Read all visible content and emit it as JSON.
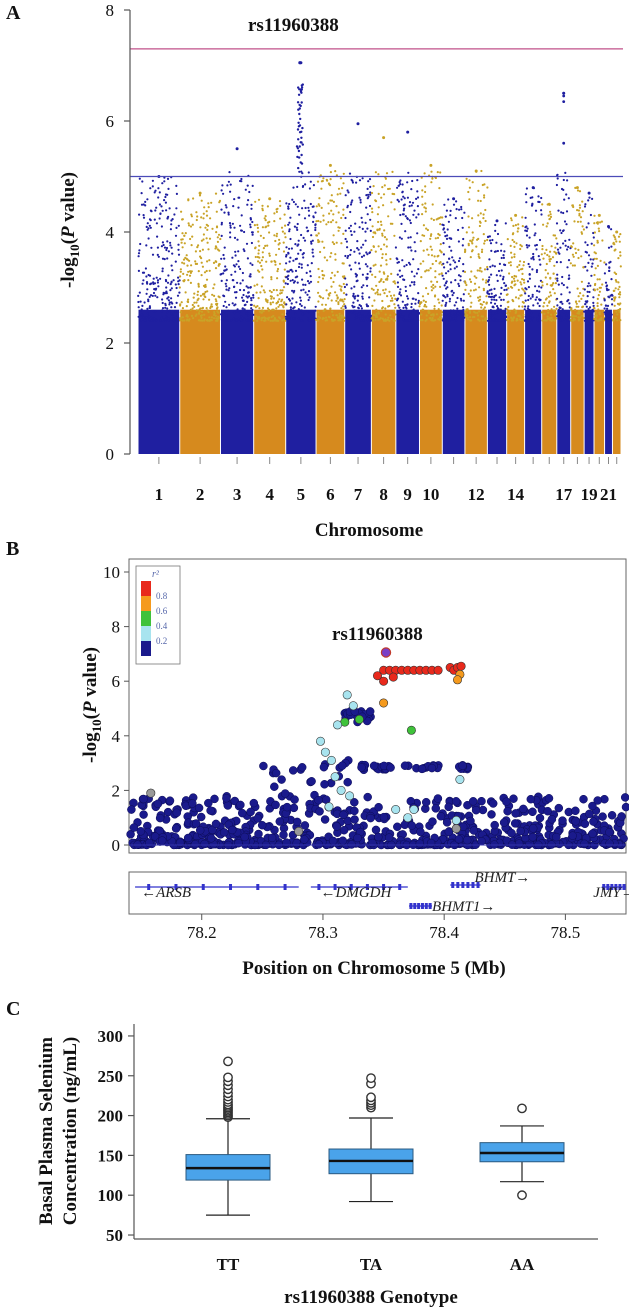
{
  "panels": {
    "a": "A",
    "b": "B",
    "c": "C"
  },
  "colors": {
    "blue": "#1f1fa0",
    "orange": "#d68a1e",
    "gold": "#c9a327",
    "magenta_line": "#c0508a",
    "blue_line": "#4b4bb8",
    "box_fill": "#4aa3ea"
  },
  "chart_data": [
    {
      "type": "scatter",
      "subtype": "manhattan",
      "annotation": "rs11960388",
      "xlabel": "Chromosome",
      "ylabel": "-log10(P value)",
      "ylim": [
        0,
        8
      ],
      "yticks": [
        "0",
        "2",
        "4",
        "6",
        "8"
      ],
      "xticks": [
        "1",
        "2",
        "3",
        "4",
        "5",
        "6",
        "7",
        "8",
        "9",
        "10",
        "12",
        "14",
        "17",
        "19",
        "21"
      ],
      "genome_wide_line": 7.3,
      "suggestive_line": 5.0,
      "chromosomes": [
        {
          "chr": 1,
          "color": "blue",
          "max": 5.0
        },
        {
          "chr": 2,
          "color": "orange",
          "max": 4.7
        },
        {
          "chr": 3,
          "color": "blue",
          "max": 5.5
        },
        {
          "chr": 4,
          "color": "orange",
          "max": 4.6
        },
        {
          "chr": 5,
          "color": "blue",
          "max": 7.05
        },
        {
          "chr": 6,
          "color": "orange",
          "max": 5.2
        },
        {
          "chr": 7,
          "color": "blue",
          "max": 5.95
        },
        {
          "chr": 8,
          "color": "orange",
          "max": 5.7
        },
        {
          "chr": 9,
          "color": "blue",
          "max": 5.8
        },
        {
          "chr": 10,
          "color": "orange",
          "max": 5.2
        },
        {
          "chr": 11,
          "color": "blue",
          "max": 4.6
        },
        {
          "chr": 12,
          "color": "orange",
          "max": 5.1
        },
        {
          "chr": 13,
          "color": "blue",
          "max": 4.2
        },
        {
          "chr": 14,
          "color": "orange",
          "max": 4.3
        },
        {
          "chr": 15,
          "color": "blue",
          "max": 4.8
        },
        {
          "chr": 16,
          "color": "orange",
          "max": 4.5
        },
        {
          "chr": 17,
          "color": "blue",
          "max": 6.5
        },
        {
          "chr": 18,
          "color": "orange",
          "max": 4.8
        },
        {
          "chr": 19,
          "color": "blue",
          "max": 4.7
        },
        {
          "chr": 20,
          "color": "orange",
          "max": 4.3
        },
        {
          "chr": 21,
          "color": "blue",
          "max": 4.1
        },
        {
          "chr": 22,
          "color": "orange",
          "max": 4.0
        }
      ]
    },
    {
      "type": "scatter",
      "subtype": "regional_association",
      "annotation": "rs11960388",
      "xlabel": "Position on Chromosome 5 (Mb)",
      "ylabel": "-log10(P value)",
      "xlim": [
        78.14,
        78.55
      ],
      "ylim": [
        0,
        10
      ],
      "xticks": [
        "78.2",
        "78.3",
        "78.4",
        "78.5"
      ],
      "yticks": [
        "0",
        "2",
        "4",
        "6",
        "8",
        "10"
      ],
      "legend": {
        "title": "r²",
        "entries": [
          "0.8",
          "0.6",
          "0.4",
          "0.2"
        ],
        "colors": [
          "#e8291c",
          "#f59a1d",
          "#3fc23a",
          "#a8e4ef",
          "#1a1a8c"
        ],
        "placement": "top-left"
      },
      "top_snp": {
        "x": 78.352,
        "y": 7.05
      },
      "highlight_points": [
        {
          "x": 78.345,
          "y": 6.2,
          "r2": "red"
        },
        {
          "x": 78.35,
          "y": 6.4,
          "r2": "red"
        },
        {
          "x": 78.355,
          "y": 6.4,
          "r2": "red"
        },
        {
          "x": 78.36,
          "y": 6.4,
          "r2": "red"
        },
        {
          "x": 78.365,
          "y": 6.4,
          "r2": "red"
        },
        {
          "x": 78.37,
          "y": 6.4,
          "r2": "red"
        },
        {
          "x": 78.375,
          "y": 6.4,
          "r2": "red"
        },
        {
          "x": 78.38,
          "y": 6.4,
          "r2": "red"
        },
        {
          "x": 78.385,
          "y": 6.4,
          "r2": "red"
        },
        {
          "x": 78.39,
          "y": 6.4,
          "r2": "red"
        },
        {
          "x": 78.395,
          "y": 6.4,
          "r2": "red"
        },
        {
          "x": 78.358,
          "y": 6.15,
          "r2": "red"
        },
        {
          "x": 78.405,
          "y": 6.5,
          "r2": "red"
        },
        {
          "x": 78.408,
          "y": 6.4,
          "r2": "red"
        },
        {
          "x": 78.411,
          "y": 6.5,
          "r2": "red"
        },
        {
          "x": 78.414,
          "y": 6.55,
          "r2": "red"
        },
        {
          "x": 78.35,
          "y": 6.0,
          "r2": "red"
        },
        {
          "x": 78.413,
          "y": 6.25,
          "r2": "orange"
        },
        {
          "x": 78.411,
          "y": 6.05,
          "r2": "orange"
        },
        {
          "x": 78.35,
          "y": 5.2,
          "r2": "orange"
        },
        {
          "x": 78.373,
          "y": 4.2,
          "r2": "green"
        },
        {
          "x": 78.33,
          "y": 4.6,
          "r2": "green"
        },
        {
          "x": 78.318,
          "y": 4.5,
          "r2": "green"
        },
        {
          "x": 78.32,
          "y": 5.5,
          "r2": "lightblue"
        },
        {
          "x": 78.325,
          "y": 5.1,
          "r2": "lightblue"
        },
        {
          "x": 78.312,
          "y": 4.4,
          "r2": "lightblue"
        },
        {
          "x": 78.302,
          "y": 3.4,
          "r2": "lightblue"
        },
        {
          "x": 78.298,
          "y": 3.8,
          "r2": "lightblue"
        },
        {
          "x": 78.307,
          "y": 3.1,
          "r2": "lightblue"
        },
        {
          "x": 78.31,
          "y": 2.5,
          "r2": "lightblue"
        },
        {
          "x": 78.315,
          "y": 2.0,
          "r2": "lightblue"
        },
        {
          "x": 78.305,
          "y": 1.4,
          "r2": "lightblue"
        },
        {
          "x": 78.322,
          "y": 1.8,
          "r2": "lightblue"
        },
        {
          "x": 78.36,
          "y": 1.3,
          "r2": "lightblue"
        },
        {
          "x": 78.375,
          "y": 1.3,
          "r2": "lightblue"
        },
        {
          "x": 78.413,
          "y": 2.4,
          "r2": "lightblue"
        },
        {
          "x": 78.41,
          "y": 0.9,
          "r2": "lightblue"
        },
        {
          "x": 78.37,
          "y": 1.0,
          "r2": "lightblue"
        },
        {
          "x": 78.158,
          "y": 1.9,
          "r2": "grey"
        },
        {
          "x": 78.41,
          "y": 0.6,
          "r2": "grey"
        },
        {
          "x": 78.28,
          "y": 0.5,
          "r2": "grey"
        }
      ],
      "genes": [
        {
          "name": "ARSB",
          "start": 78.145,
          "end": 78.28,
          "strand": "-",
          "row": 1,
          "label_x": 78.15
        },
        {
          "name": "DMGDH",
          "start": 78.29,
          "end": 78.37,
          "strand": "-",
          "row": 1,
          "label_x": 78.298
        },
        {
          "name": "BHMT",
          "start": 78.405,
          "end": 78.43,
          "strand": "+",
          "row": 0,
          "label_x": 78.425
        },
        {
          "name": "BHMT1",
          "start": 78.371,
          "end": 78.39,
          "strand": "+",
          "row": 2,
          "label_x": 78.39
        },
        {
          "name": "JMY",
          "start": 78.53,
          "end": 78.55,
          "strand": "+",
          "row": 1,
          "label_x": 78.523
        }
      ]
    },
    {
      "type": "box",
      "xlabel": "rs11960388 Genotype",
      "ylabel": [
        "Basal Plasma Selenium",
        "Concentration (ng/mL)"
      ],
      "ylim": [
        45,
        315
      ],
      "yticks": [
        "50",
        "100",
        "150",
        "200",
        "250",
        "300"
      ],
      "categories": [
        "TT",
        "TA",
        "AA"
      ],
      "boxes": [
        {
          "label": "TT",
          "min": 75,
          "q1": 119,
          "median": 134,
          "q3": 151,
          "max": 196,
          "outliers": [
            198,
            200,
            202,
            204,
            206,
            208,
            210,
            212,
            214,
            217,
            220,
            224,
            228,
            233,
            238,
            243,
            248,
            268
          ]
        },
        {
          "label": "TA",
          "min": 92,
          "q1": 127,
          "median": 143,
          "q3": 158,
          "max": 197,
          "outliers": [
            210,
            213,
            216,
            219,
            223,
            240,
            247
          ]
        },
        {
          "label": "AA",
          "min": 117,
          "q1": 142,
          "median": 153,
          "q3": 166,
          "max": 187,
          "outliers": [
            100,
            209
          ]
        }
      ]
    }
  ]
}
